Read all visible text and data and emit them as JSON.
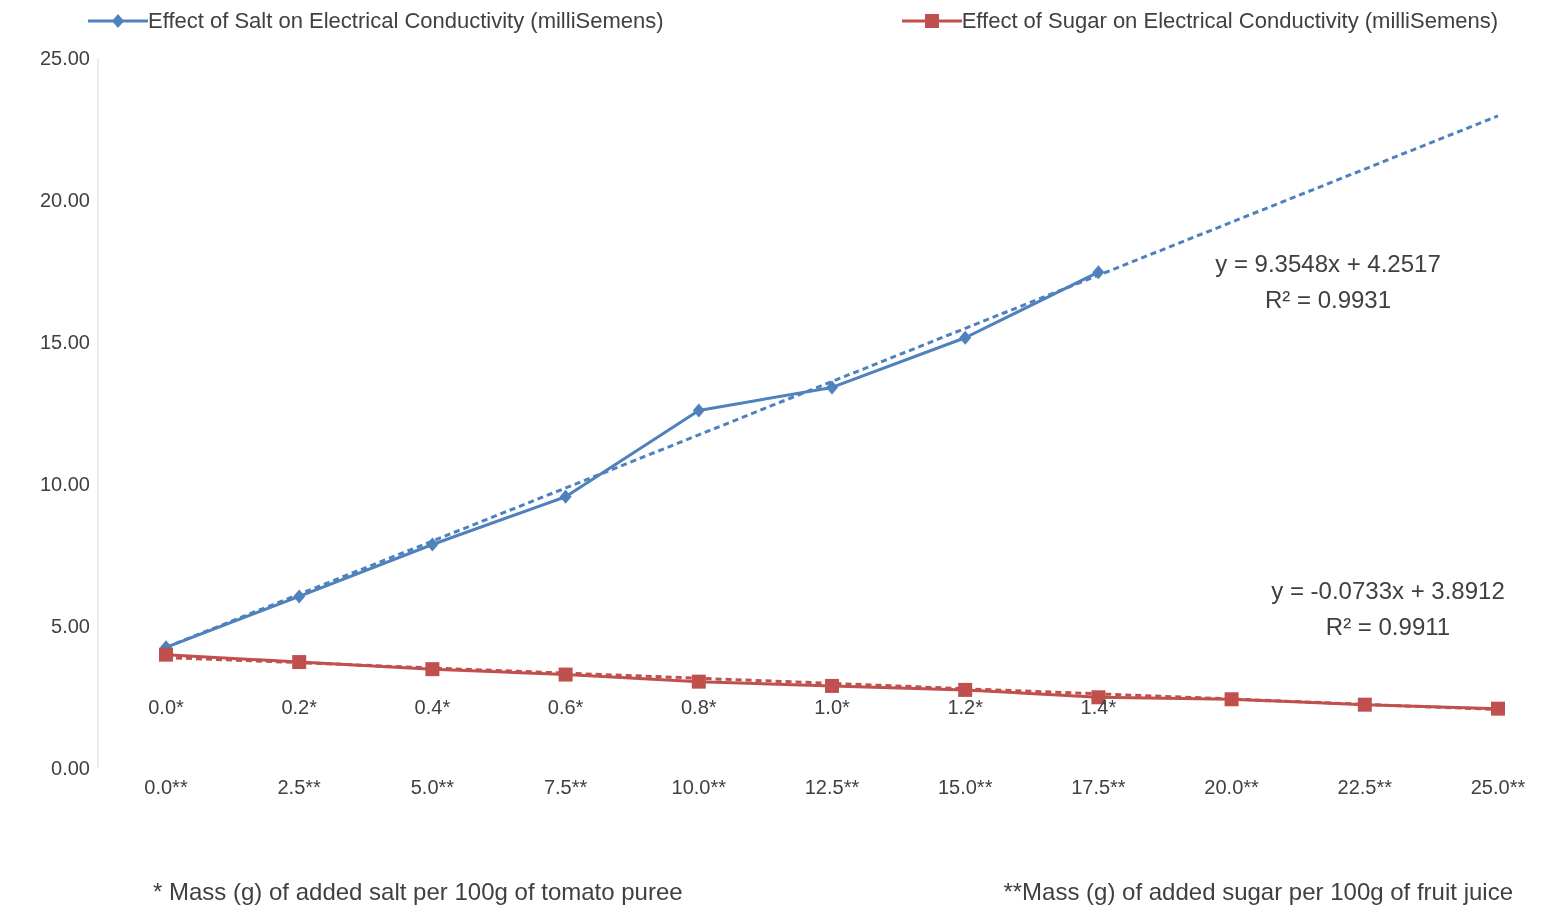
{
  "chart_data": {
    "type": "line",
    "categories": [
      "0.0**",
      "2.5**",
      "5.0**",
      "7.5**",
      "10.0**",
      "12.5**",
      "15.0**",
      "17.5**",
      "20.0**",
      "22.5**",
      "25.0**"
    ],
    "series": [
      {
        "name": "Effect of Salt on Electrical Conductivity (milliSemens)",
        "color": "#4f81bd",
        "marker": "diamond",
        "values": [
          4.25,
          6.04,
          7.87,
          9.55,
          12.59,
          13.4,
          15.15,
          17.46,
          null,
          null,
          null
        ]
      },
      {
        "name": "Effect of Sugar on Electrical Conductivity (milliSemens)",
        "color": "#c0504d",
        "marker": "square",
        "values": [
          3.99,
          3.73,
          3.48,
          3.29,
          3.04,
          2.89,
          2.75,
          2.49,
          2.42,
          2.23,
          2.09
        ]
      },
      {
        "color": "#4f81bd",
        "marker": "none",
        "line_style": "dashed",
        "x": [
          "0.0**",
          "2.5**",
          "5.0**",
          "7.5**",
          "10.0**",
          "12.5**",
          "15.0**",
          "17.5**",
          "20.0**",
          "22.5**",
          "25.0**"
        ],
        "values": [
          4.25,
          6.12,
          7.99,
          9.86,
          11.73,
          13.61,
          15.48,
          17.35,
          19.22,
          21.09,
          22.96
        ]
      },
      {
        "color": "#c0504d",
        "marker": "none",
        "line_style": "dashed",
        "x": [
          "0.0**",
          "2.5**",
          "5.0**",
          "7.5**",
          "10.0**",
          "12.5**",
          "15.0**",
          "17.5**",
          "20.0**",
          "22.5**",
          "25.0**"
        ],
        "values": [
          3.89,
          3.71,
          3.52,
          3.34,
          3.16,
          2.98,
          2.79,
          2.61,
          2.43,
          2.24,
          2.06
        ]
      }
    ],
    "ylim": [
      0,
      25
    ],
    "yticks": [
      {
        "value": 0,
        "label": "0.00"
      },
      {
        "value": 5,
        "label": "5.00"
      },
      {
        "value": 10,
        "label": "10.00"
      },
      {
        "value": 15,
        "label": "15.00"
      },
      {
        "value": 20,
        "label": "20.00"
      },
      {
        "value": 25,
        "label": "25.00"
      }
    ],
    "grid": false,
    "legend": "top",
    "annotations": [
      "0.0*",
      "0.2*",
      "0.4*",
      "0.6*",
      "0.8*",
      "1.0*",
      "1.2*",
      "1.4*",
      "y = 9.3548x + 4.2517",
      "R² = 0.9931",
      "y = -0.0733x + 3.8912",
      "R² = 0.9911",
      "* Mass (g) of added salt per 100g of tomato puree",
      "**Mass (g) of added sugar per 100g of fruit juice"
    ]
  }
}
